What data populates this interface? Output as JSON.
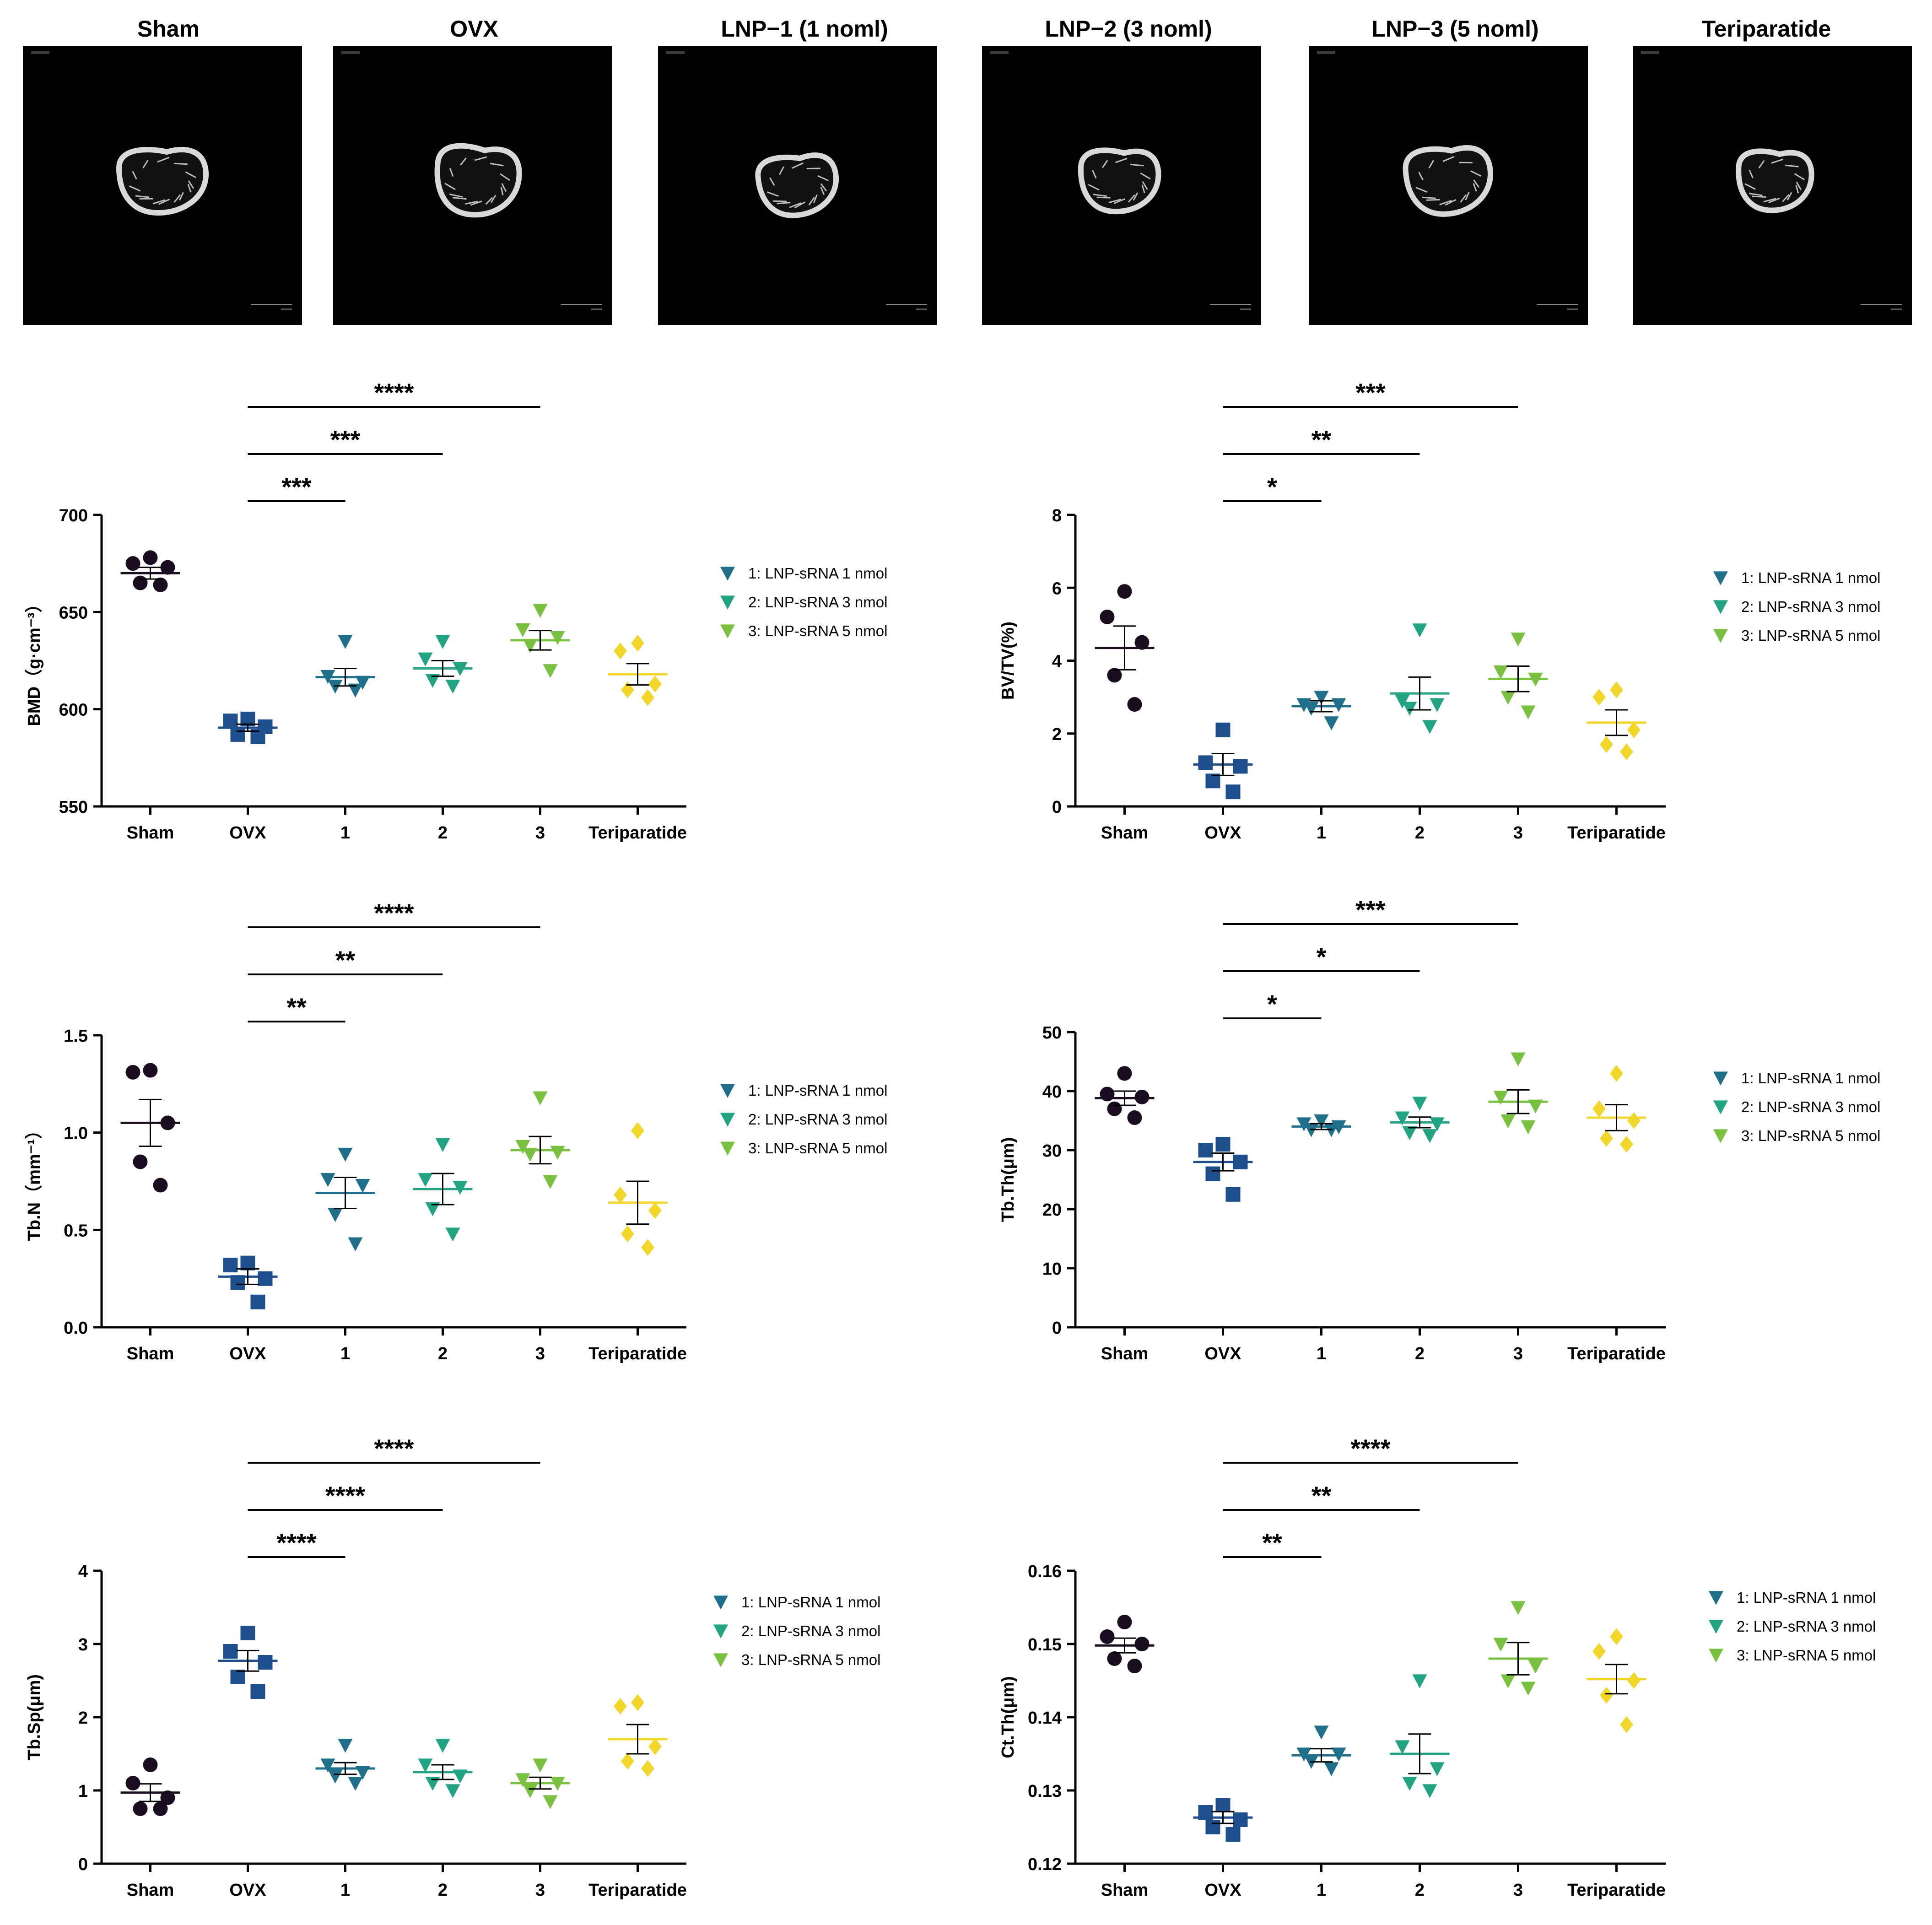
{
  "microct": {
    "panels": [
      {
        "title": "Sham"
      },
      {
        "title": "OVX"
      },
      {
        "title": "LNP−1 (1 noml)"
      },
      {
        "title": "LNP−2 (3 noml)"
      },
      {
        "title": "LNP−3 (5 noml)"
      },
      {
        "title": "Teriparatide"
      }
    ]
  },
  "legend_entries": [
    "1: LNP-sRNA  1 nmol",
    "2: LNP-sRNA  3 nmol",
    "3: LNP-sRNA  5 nmol"
  ],
  "colors": {
    "Sham": "#1a0d1f",
    "OVX": "#1f4e8c",
    "1": "#1f6f8b",
    "2": "#22a382",
    "3": "#7ac142",
    "Teriparatide": "#f2d72a"
  },
  "marker_shapes": {
    "Sham": "circle",
    "OVX": "square",
    "1": "triangle-down",
    "2": "triangle-down",
    "3": "triangle-down",
    "Teriparatide": "diamond"
  },
  "chart_data": [
    {
      "type": "scatter",
      "ylabel": "BMD（g·cm⁻³）",
      "categories": [
        "Sham",
        "OVX",
        "1",
        "2",
        "3",
        "Teriparatide"
      ],
      "ylim": [
        550,
        700
      ],
      "yticks": [
        550,
        600,
        650,
        700
      ],
      "series": [
        {
          "category": "Sham",
          "values": [
            678,
            675,
            673,
            665,
            664
          ],
          "mean": 670,
          "sem": 3
        },
        {
          "category": "OVX",
          "values": [
            595,
            594,
            591,
            587,
            586
          ],
          "mean": 590.5,
          "sem": 1.8
        },
        {
          "category": "1",
          "values": [
            635,
            617,
            614,
            612,
            610
          ],
          "mean": 616.5,
          "sem": 4.5
        },
        {
          "category": "2",
          "values": [
            635,
            626,
            621,
            615,
            612
          ],
          "mean": 621,
          "sem": 4
        },
        {
          "category": "3",
          "values": [
            651,
            641,
            637,
            633,
            620
          ],
          "mean": 635.5,
          "sem": 5
        },
        {
          "category": "Teriparatide",
          "values": [
            634,
            630,
            613,
            610,
            606
          ],
          "mean": 618,
          "sem": 5.5
        }
      ],
      "significance": [
        {
          "from": "OVX",
          "to": "1",
          "label": "***"
        },
        {
          "from": "OVX",
          "to": "2",
          "label": "***"
        },
        {
          "from": "OVX",
          "to": "3",
          "label": "****"
        }
      ]
    },
    {
      "type": "scatter",
      "ylabel": "BV/TV(%)",
      "categories": [
        "Sham",
        "OVX",
        "1",
        "2",
        "3",
        "Teriparatide"
      ],
      "ylim": [
        0,
        8
      ],
      "yticks": [
        0,
        2,
        4,
        6,
        8
      ],
      "series": [
        {
          "category": "Sham",
          "values": [
            5.9,
            5.2,
            4.5,
            3.6,
            2.8
          ],
          "mean": 4.35,
          "sem": 0.6
        },
        {
          "category": "OVX",
          "values": [
            2.1,
            1.2,
            1.1,
            0.7,
            0.4
          ],
          "mean": 1.15,
          "sem": 0.3
        },
        {
          "category": "1",
          "values": [
            3.0,
            2.8,
            2.8,
            2.7,
            2.3
          ],
          "mean": 2.75,
          "sem": 0.15
        },
        {
          "category": "2",
          "values": [
            4.85,
            2.9,
            2.8,
            2.7,
            2.2
          ],
          "mean": 3.1,
          "sem": 0.45
        },
        {
          "category": "3",
          "values": [
            4.6,
            3.7,
            3.5,
            3.0,
            2.6
          ],
          "mean": 3.5,
          "sem": 0.35
        },
        {
          "category": "Teriparatide",
          "values": [
            3.2,
            3.0,
            2.1,
            1.7,
            1.5
          ],
          "mean": 2.3,
          "sem": 0.35
        }
      ],
      "significance": [
        {
          "from": "OVX",
          "to": "1",
          "label": "*"
        },
        {
          "from": "OVX",
          "to": "2",
          "label": "**"
        },
        {
          "from": "OVX",
          "to": "3",
          "label": "***"
        }
      ]
    },
    {
      "type": "scatter",
      "ylabel": "Tb.N（mm⁻¹）",
      "categories": [
        "Sham",
        "OVX",
        "1",
        "2",
        "3",
        "Teriparatide"
      ],
      "ylim": [
        0,
        1.5
      ],
      "yticks": [
        "0.0",
        "0.5",
        "1.0",
        "1.5"
      ],
      "series": [
        {
          "category": "Sham",
          "values": [
            1.32,
            1.31,
            1.05,
            0.85,
            0.73
          ],
          "mean": 1.05,
          "sem": 0.12
        },
        {
          "category": "OVX",
          "values": [
            0.33,
            0.32,
            0.25,
            0.23,
            0.13
          ],
          "mean": 0.26,
          "sem": 0.04
        },
        {
          "category": "1",
          "values": [
            0.89,
            0.76,
            0.73,
            0.58,
            0.43
          ],
          "mean": 0.69,
          "sem": 0.08
        },
        {
          "category": "2",
          "values": [
            0.94,
            0.76,
            0.72,
            0.61,
            0.48
          ],
          "mean": 0.71,
          "sem": 0.08
        },
        {
          "category": "3",
          "values": [
            1.18,
            0.93,
            0.9,
            0.89,
            0.75
          ],
          "mean": 0.91,
          "sem": 0.07
        },
        {
          "category": "Teriparatide",
          "values": [
            1.01,
            0.68,
            0.6,
            0.48,
            0.41
          ],
          "mean": 0.64,
          "sem": 0.11
        }
      ],
      "significance": [
        {
          "from": "OVX",
          "to": "1",
          "label": "**"
        },
        {
          "from": "OVX",
          "to": "2",
          "label": "**"
        },
        {
          "from": "OVX",
          "to": "3",
          "label": "****"
        }
      ]
    },
    {
      "type": "scatter",
      "ylabel": "Tb.Th(μm)",
      "categories": [
        "Sham",
        "OVX",
        "1",
        "2",
        "3",
        "Teriparatide"
      ],
      "ylim": [
        0,
        50
      ],
      "yticks": [
        0,
        10,
        20,
        30,
        40,
        50
      ],
      "series": [
        {
          "category": "Sham",
          "values": [
            43,
            39.5,
            39,
            37,
            35.5
          ],
          "mean": 38.8,
          "sem": 1.2
        },
        {
          "category": "OVX",
          "values": [
            31,
            30,
            28,
            26,
            22.5
          ],
          "mean": 28,
          "sem": 1.5
        },
        {
          "category": "1",
          "values": [
            35,
            34.5,
            34,
            33.5,
            33.5
          ],
          "mean": 34,
          "sem": 0.5
        },
        {
          "category": "2",
          "values": [
            38,
            35.5,
            34.5,
            33,
            32.5
          ],
          "mean": 34.7,
          "sem": 0.9
        },
        {
          "category": "3",
          "values": [
            45.5,
            39,
            37.5,
            35,
            34
          ],
          "mean": 38.2,
          "sem": 2
        },
        {
          "category": "Teriparatide",
          "values": [
            43,
            37,
            35,
            32,
            31
          ],
          "mean": 35.5,
          "sem": 2.2
        }
      ],
      "significance": [
        {
          "from": "OVX",
          "to": "1",
          "label": "*"
        },
        {
          "from": "OVX",
          "to": "2",
          "label": "*"
        },
        {
          "from": "OVX",
          "to": "3",
          "label": "***"
        }
      ]
    },
    {
      "type": "scatter",
      "ylabel": "Tb.Sp(μm)",
      "categories": [
        "Sham",
        "OVX",
        "1",
        "2",
        "3",
        "Teriparatide"
      ],
      "ylim": [
        0,
        4
      ],
      "yticks": [
        0,
        1,
        2,
        3,
        4
      ],
      "series": [
        {
          "category": "Sham",
          "values": [
            1.35,
            1.1,
            0.9,
            0.75,
            0.75
          ],
          "mean": 0.97,
          "sem": 0.12
        },
        {
          "category": "OVX",
          "values": [
            3.15,
            2.9,
            2.75,
            2.55,
            2.35
          ],
          "mean": 2.77,
          "sem": 0.14
        },
        {
          "category": "1",
          "values": [
            1.62,
            1.35,
            1.25,
            1.2,
            1.1
          ],
          "mean": 1.3,
          "sem": 0.08
        },
        {
          "category": "2",
          "values": [
            1.62,
            1.35,
            1.2,
            1.1,
            1.0
          ],
          "mean": 1.25,
          "sem": 0.1
        },
        {
          "category": "3",
          "values": [
            1.35,
            1.15,
            1.1,
            1.0,
            0.85
          ],
          "mean": 1.1,
          "sem": 0.08
        },
        {
          "category": "Teriparatide",
          "values": [
            2.2,
            2.15,
            1.6,
            1.4,
            1.3
          ],
          "mean": 1.7,
          "sem": 0.2
        }
      ],
      "significance": [
        {
          "from": "OVX",
          "to": "1",
          "label": "****"
        },
        {
          "from": "OVX",
          "to": "2",
          "label": "****"
        },
        {
          "from": "OVX",
          "to": "3",
          "label": "****"
        }
      ]
    },
    {
      "type": "scatter",
      "ylabel": "Ct.Th(μm)",
      "categories": [
        "Sham",
        "OVX",
        "1",
        "2",
        "3",
        "Teriparatide"
      ],
      "ylim": [
        0.12,
        0.16
      ],
      "yticks": [
        "0.12",
        "0.13",
        "0.14",
        "0.15",
        "0.16"
      ],
      "series": [
        {
          "category": "Sham",
          "values": [
            0.153,
            0.151,
            0.15,
            0.148,
            0.147
          ],
          "mean": 0.1498,
          "sem": 0.001
        },
        {
          "category": "OVX",
          "values": [
            0.128,
            0.127,
            0.126,
            0.125,
            0.124
          ],
          "mean": 0.1263,
          "sem": 0.0008
        },
        {
          "category": "1",
          "values": [
            0.138,
            0.135,
            0.135,
            0.134,
            0.133
          ],
          "mean": 0.1348,
          "sem": 0.0009
        },
        {
          "category": "2",
          "values": [
            0.145,
            0.136,
            0.133,
            0.131,
            0.13
          ],
          "mean": 0.135,
          "sem": 0.0027
        },
        {
          "category": "3",
          "values": [
            0.155,
            0.15,
            0.147,
            0.145,
            0.144
          ],
          "mean": 0.148,
          "sem": 0.0022
        },
        {
          "category": "Teriparatide",
          "values": [
            0.151,
            0.149,
            0.145,
            0.143,
            0.139
          ],
          "mean": 0.1452,
          "sem": 0.002
        }
      ],
      "significance": [
        {
          "from": "OVX",
          "to": "1",
          "label": "**"
        },
        {
          "from": "OVX",
          "to": "2",
          "label": "**"
        },
        {
          "from": "OVX",
          "to": "3",
          "label": "****"
        }
      ]
    }
  ]
}
